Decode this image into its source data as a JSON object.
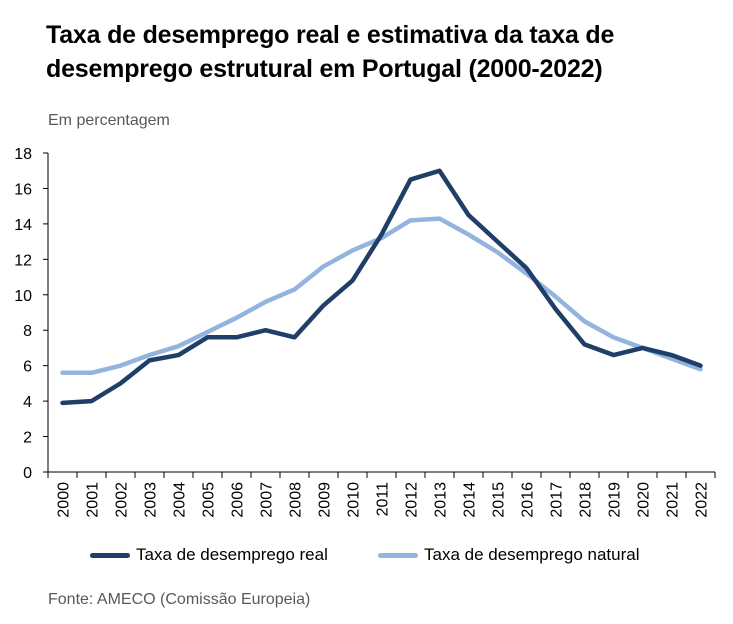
{
  "title": "Taxa de desemprego real e estimativa da taxa de desemprego estrutural em Portugal (2000-2022)",
  "subtitle": "Em percentagem",
  "source": "Fonte: AMECO (Comissão Europeia)",
  "colors": {
    "real": "#1f3e68",
    "natural": "#92b4de",
    "axis": "#000000"
  },
  "chart_data": {
    "type": "line",
    "x": [
      "2000",
      "2001",
      "2002",
      "2003",
      "2004",
      "2005",
      "2006",
      "2007",
      "2008",
      "2009",
      "2010",
      "2011",
      "2012",
      "2013",
      "2014",
      "2015",
      "2016",
      "2017",
      "2018",
      "2019",
      "2020",
      "2021",
      "2022"
    ],
    "yticks": [
      "0",
      "2",
      "4",
      "6",
      "8",
      "10",
      "12",
      "14",
      "16",
      "18"
    ],
    "ylim": [
      0,
      18
    ],
    "grid": false,
    "legend_position": "bottom",
    "series": [
      {
        "name": "Taxa de desemprego real",
        "values": [
          3.9,
          4.0,
          5.0,
          6.3,
          6.6,
          7.6,
          7.6,
          8.0,
          7.6,
          9.4,
          10.8,
          13.4,
          16.5,
          17.0,
          14.5,
          13.0,
          11.5,
          9.2,
          7.2,
          6.6,
          7.0,
          6.6,
          6.0
        ]
      },
      {
        "name": "Taxa de desemprego natural",
        "values": [
          5.6,
          5.6,
          6.0,
          6.6,
          7.1,
          7.9,
          8.7,
          9.6,
          10.3,
          11.6,
          12.5,
          13.2,
          14.2,
          14.3,
          13.4,
          12.4,
          11.2,
          9.9,
          8.5,
          7.6,
          7.0,
          6.4,
          5.8
        ]
      }
    ]
  }
}
